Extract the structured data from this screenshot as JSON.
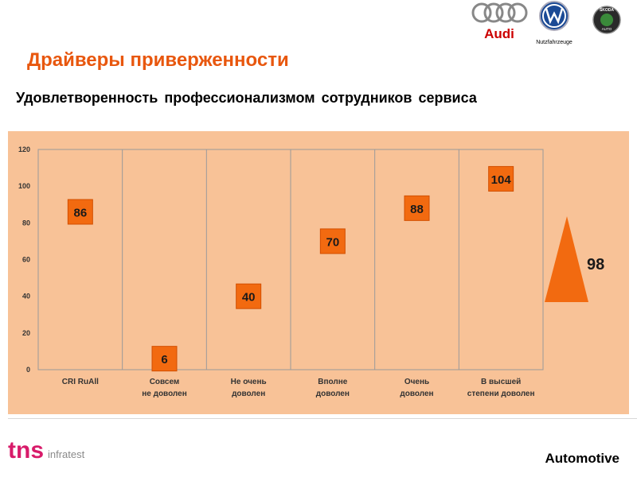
{
  "header": {
    "title": "Драйверы приверженности",
    "subtitle": "Удовлетворенность  профессионализмом  сотрудников  сервиса"
  },
  "brands": {
    "audi_label": "Audi",
    "vw_label": "Nutzfahrzeuge",
    "skoda_text": "ŠKODA",
    "skoda_sub": "AUTO"
  },
  "footer": {
    "logo_main": "tns",
    "logo_sub": "infratest",
    "label": "Automotive"
  },
  "colors": {
    "title": "#e8570e",
    "panel": "#f8c297",
    "badge": "#f26a10",
    "triangle": "#f26a10"
  },
  "chart_data": {
    "type": "bar",
    "categories": [
      [
        "CRI RuAll"
      ],
      [
        "Совсем",
        "не доволен"
      ],
      [
        "Не очень",
        "доволен"
      ],
      [
        "Вполне",
        "доволен"
      ],
      [
        "Очень",
        "доволен"
      ],
      [
        "В высшей",
        "степени доволен"
      ]
    ],
    "values": [
      86,
      6,
      40,
      70,
      88,
      104
    ],
    "ylim": [
      0,
      120
    ],
    "yticks": [
      0,
      20,
      40,
      60,
      80,
      100,
      120
    ],
    "grid": false,
    "side_indicator": {
      "shape": "triangle",
      "value": 98
    }
  }
}
